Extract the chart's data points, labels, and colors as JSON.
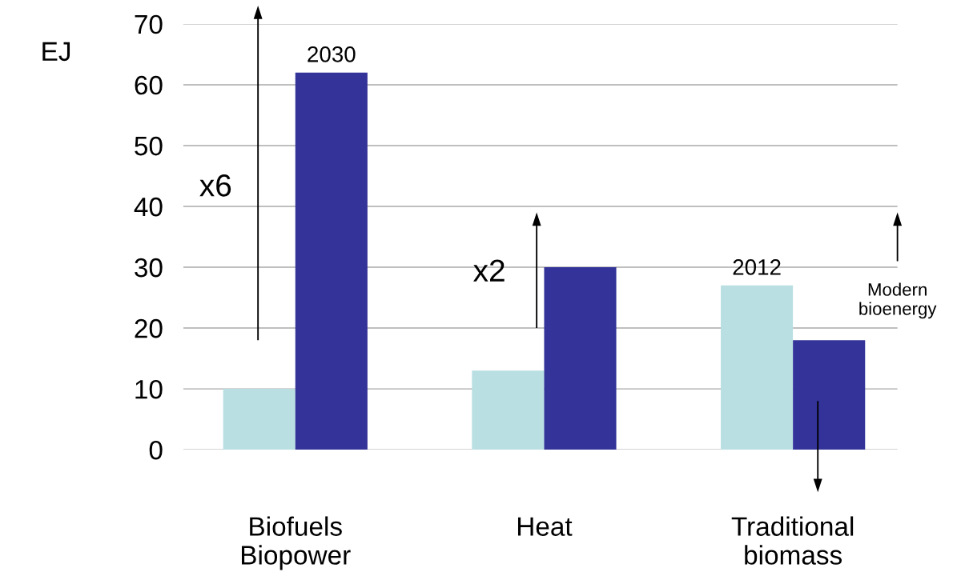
{
  "chart_data": {
    "type": "bar",
    "ylabel": "EJ",
    "categories": [
      "Biofuels\nBiopower",
      "Heat",
      "Traditional\nbiomass"
    ],
    "series": [
      {
        "name": "2012",
        "color": "#b9dfe2",
        "values": [
          10,
          13,
          27
        ]
      },
      {
        "name": "2030",
        "color": "#333399",
        "values": [
          62,
          30,
          18
        ]
      }
    ],
    "ylim": [
      0,
      70
    ],
    "yticks": [
      0,
      10,
      20,
      30,
      40,
      50,
      60,
      70
    ],
    "grid": "y",
    "legend": false,
    "annotations": [
      "x6",
      "x2",
      "Modern\nbioenergy"
    ]
  }
}
